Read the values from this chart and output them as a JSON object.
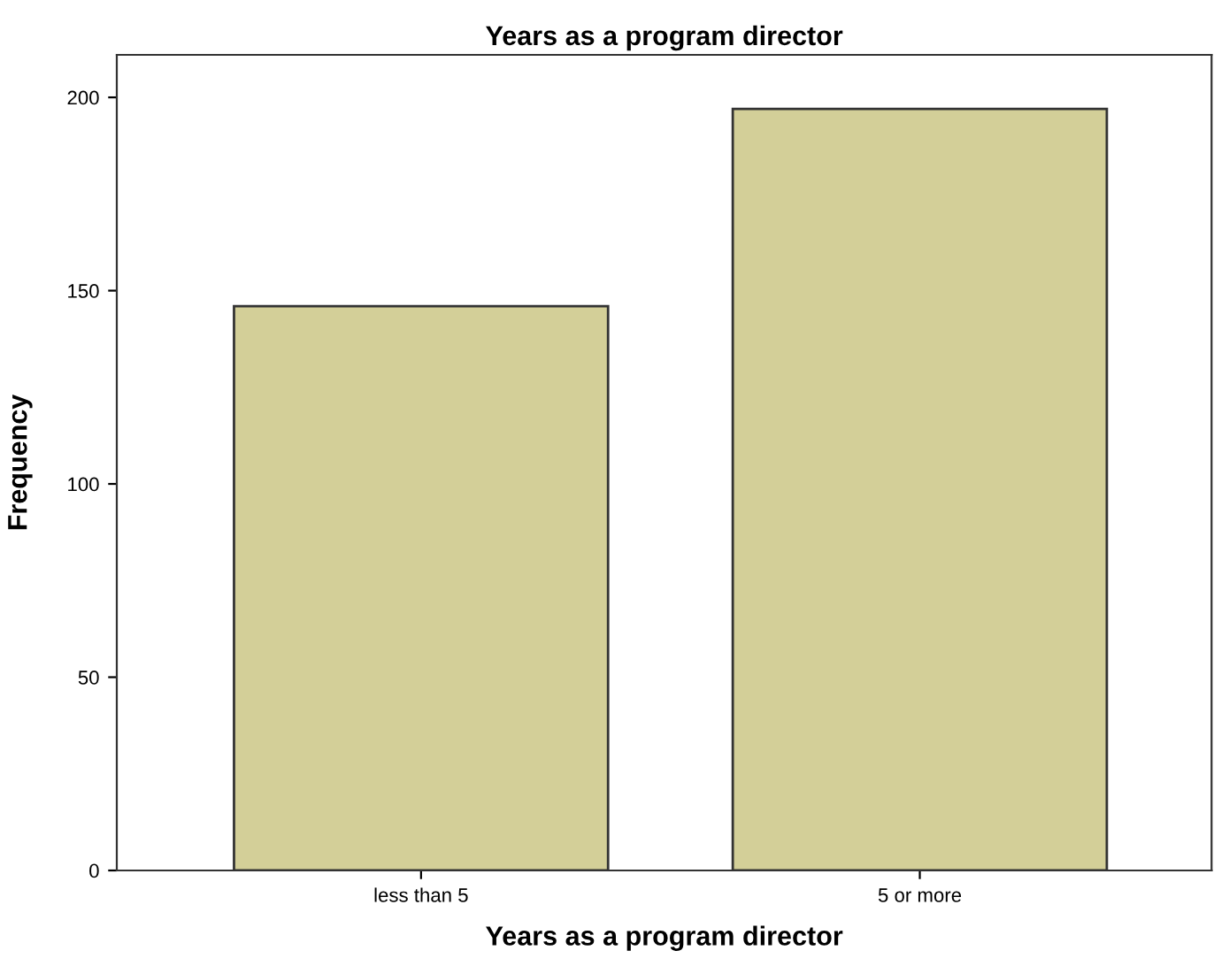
{
  "chart_data": {
    "type": "bar",
    "title": "Years as a program director",
    "xlabel": "Years as a program director",
    "ylabel": "Frequency",
    "categories": [
      "less than 5",
      "5 or more"
    ],
    "values": [
      146,
      197
    ],
    "color": "#d3cf98",
    "ylim": [
      0,
      211
    ],
    "yticks": [
      0,
      50,
      100,
      150,
      200
    ],
    "grid": false,
    "legend": false
  }
}
